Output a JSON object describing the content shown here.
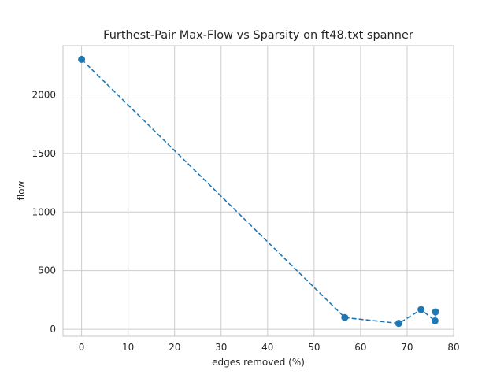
{
  "chart_data": {
    "type": "line",
    "title": "Furthest-Pair Max-Flow vs Sparsity on ft48.txt spanner",
    "xlabel": "edges removed (%)",
    "ylabel": "flow",
    "xlim": [
      -4,
      80
    ],
    "ylim": [
      -60,
      2420
    ],
    "xticks": [
      0,
      10,
      20,
      30,
      40,
      50,
      60,
      70,
      80
    ],
    "yticks": [
      0,
      500,
      1000,
      1500,
      2000
    ],
    "grid": true,
    "line_style": "dashed",
    "marker": "circle",
    "color": "#1f77b4",
    "series": [
      {
        "x": [
          0,
          56.6,
          68.2,
          73.0,
          76.0,
          76.1
        ],
        "y": [
          2303,
          100,
          50,
          168,
          72,
          148
        ]
      }
    ]
  }
}
